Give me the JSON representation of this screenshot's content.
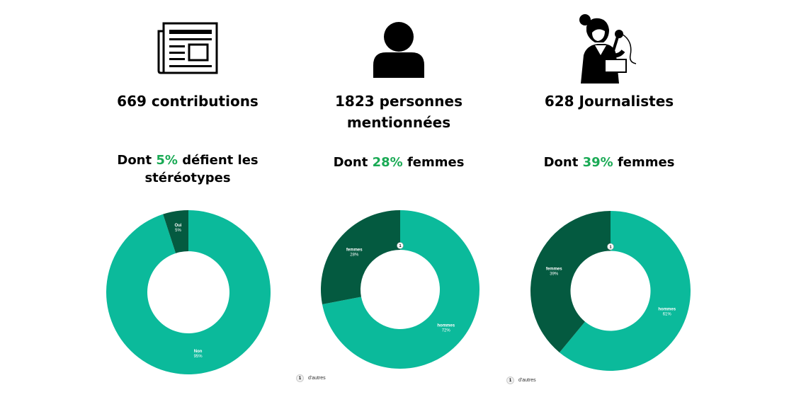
{
  "colors": {
    "accent_green": "#1aaa55",
    "teal": "#0bba9b",
    "dark_green": "#045a40"
  },
  "columns": [
    {
      "icon": "newspaper-icon",
      "stat": "669 contributions",
      "sub_prefix": "Dont ",
      "sub_highlight": "5%",
      "sub_suffix": " défient les stéréotypes"
    },
    {
      "icon": "person-icon",
      "stat": "1823 personnes mentionnées",
      "sub_prefix": "Dont ",
      "sub_highlight": "28%",
      "sub_suffix": " femmes"
    },
    {
      "icon": "journalist-icon",
      "stat": "628 Journalistes",
      "sub_prefix": "Dont ",
      "sub_highlight": "39%",
      "sub_suffix": " femmes"
    }
  ],
  "chart_data": [
    {
      "type": "pie",
      "donut": true,
      "slices": [
        {
          "label": "Oui",
          "value": 5,
          "value_label": "5%",
          "color": "#045a40"
        },
        {
          "label": "Non",
          "value": 95,
          "value_label": "95%",
          "color": "#0bba9b"
        }
      ]
    },
    {
      "type": "pie",
      "donut": true,
      "marker": "1",
      "slices": [
        {
          "label": "hommes",
          "value": 72,
          "value_label": "72%",
          "color": "#0bba9b"
        },
        {
          "label": "femmes",
          "value": 28,
          "value_label": "28%",
          "color": "#045a40"
        }
      ],
      "legend": [
        {
          "badge": "1",
          "label": "d'autres"
        }
      ]
    },
    {
      "type": "pie",
      "donut": true,
      "marker": "1",
      "slices": [
        {
          "label": "hommes",
          "value": 61,
          "value_label": "61%",
          "color": "#0bba9b"
        },
        {
          "label": "femmes",
          "value": 39,
          "value_label": "39%",
          "color": "#045a40"
        }
      ],
      "legend": [
        {
          "badge": "1",
          "label": "d'autres"
        }
      ]
    }
  ]
}
